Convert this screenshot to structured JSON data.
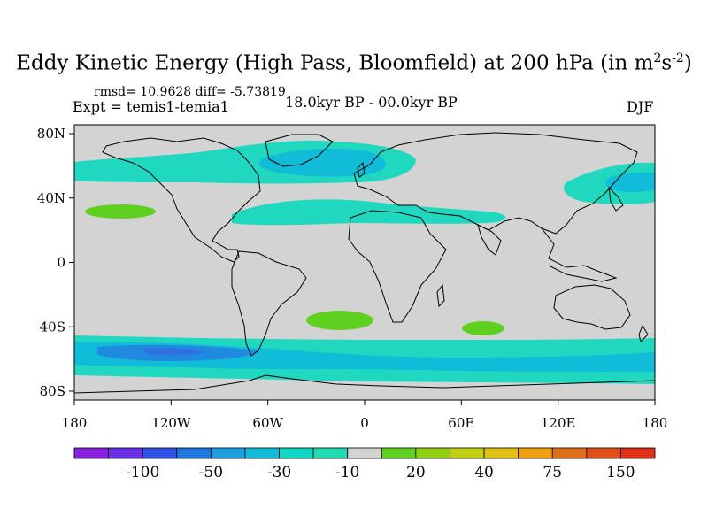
{
  "title": {
    "main": "Eddy Kinetic Energy (High Pass, Bloomfield) at 200 hPa (in m",
    "sup1": "2",
    "mid": "s",
    "sup2": "-2",
    "close": ")"
  },
  "stats": "rmsd= 10.9628 diff= -5.73819",
  "experiment": "Expt = temis1-temia1",
  "period": "18.0kyr BP - 00.0kyr BP",
  "season": "DJF",
  "map": {
    "lon_ticks": [
      "180",
      "120W",
      "60W",
      "0",
      "60E",
      "120E",
      "180"
    ],
    "lat_ticks": [
      "80N",
      "40N",
      "0",
      "40S",
      "80S"
    ],
    "land_outline_color": "#000000",
    "background_color": "#d3d3d3"
  },
  "colorbar": {
    "colors": [
      "#8a20e0",
      "#6a30e8",
      "#3050e8",
      "#1f78e0",
      "#1ea0e0",
      "#10bcd8",
      "#10d8c8",
      "#20dcb0",
      "#d3d3d3",
      "#60d020",
      "#90d010",
      "#c0d010",
      "#e0c010",
      "#f0a010",
      "#e07018",
      "#e05018",
      "#e03018"
    ],
    "labels": [
      "-100",
      "-50",
      "-30",
      "-10",
      "20",
      "40",
      "75",
      "150"
    ]
  }
}
